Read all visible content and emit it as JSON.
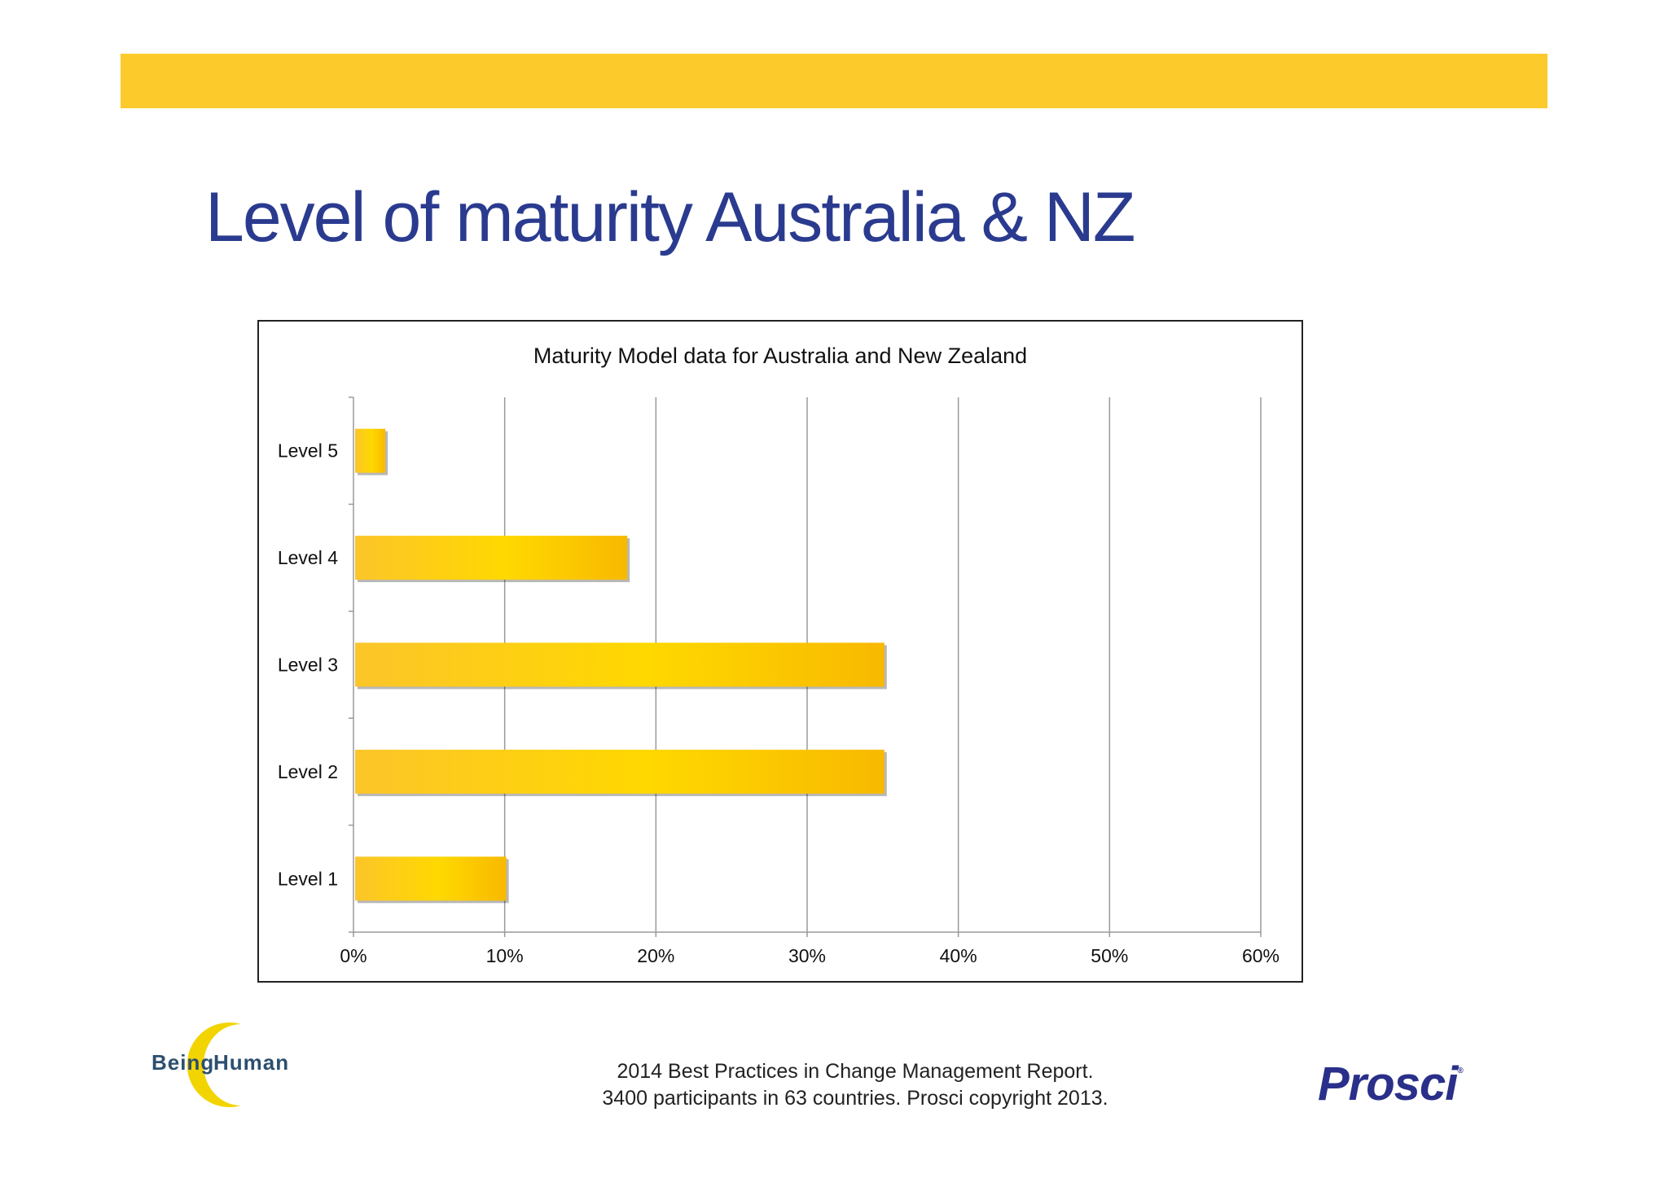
{
  "slide": {
    "title": "Level of maturity Australia & NZ",
    "footer_line1": "2014 Best Practices in Change Management Report.",
    "footer_line2": "3400 participants in 63 countries.  Prosci copyright 2013."
  },
  "logos": {
    "left_word1": "Being",
    "left_word2": "Human",
    "right": "Prosci",
    "right_mark": "®"
  },
  "colors": {
    "band": "#fcca2a",
    "title": "#2a3b8f",
    "bar": "#fcc52a",
    "bar_highlight": "#ffd800",
    "bar_dark": "#f8b900",
    "grid": "#9a9a9a"
  },
  "chart_data": {
    "type": "bar",
    "orientation": "horizontal",
    "title": "Maturity Model data for Australia and New Zealand",
    "categories": [
      "Level 5",
      "Level 4",
      "Level 3",
      "Level 2",
      "Level 1"
    ],
    "values": [
      2,
      18,
      35,
      35,
      10
    ],
    "unit": "%",
    "xlim": [
      0,
      60
    ],
    "xticks": [
      "0%",
      "10%",
      "20%",
      "30%",
      "40%",
      "50%",
      "60%"
    ],
    "grid": "vertical",
    "legend": "none"
  }
}
